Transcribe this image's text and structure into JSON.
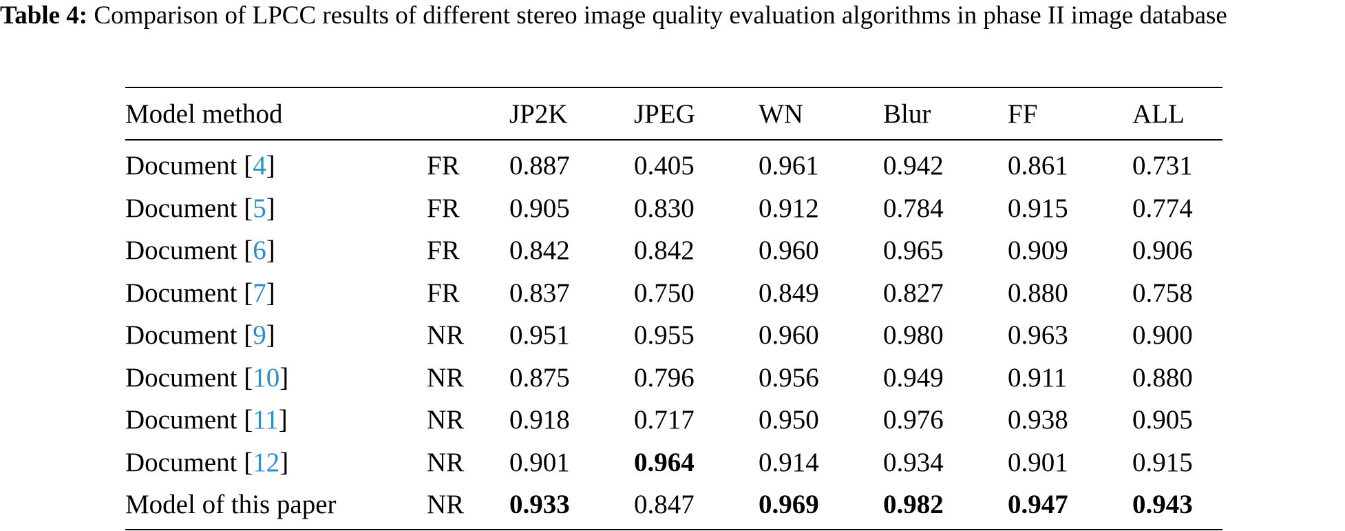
{
  "caption": {
    "label": "Table 4:",
    "text": " Comparison of LPCC results of different stereo image quality evaluation algorithms in phase II image database"
  },
  "table": {
    "headers": [
      "Model method",
      "",
      "JP2K",
      "JPEG",
      "WN",
      "Blur",
      "FF",
      "ALL"
    ],
    "rows": [
      {
        "method": "Document ",
        "ref": "4",
        "type": "FR",
        "values": [
          "0.887",
          "0.405",
          "0.961",
          "0.942",
          "0.861",
          "0.731"
        ],
        "bold": [
          false,
          false,
          false,
          false,
          false,
          false
        ]
      },
      {
        "method": "Document ",
        "ref": "5",
        "type": "FR",
        "values": [
          "0.905",
          "0.830",
          "0.912",
          "0.784",
          "0.915",
          "0.774"
        ],
        "bold": [
          false,
          false,
          false,
          false,
          false,
          false
        ]
      },
      {
        "method": "Document ",
        "ref": "6",
        "type": "FR",
        "values": [
          "0.842",
          "0.842",
          "0.960",
          "0.965",
          "0.909",
          "0.906"
        ],
        "bold": [
          false,
          false,
          false,
          false,
          false,
          false
        ]
      },
      {
        "method": "Document ",
        "ref": "7",
        "type": "FR",
        "values": [
          "0.837",
          "0.750",
          "0.849",
          "0.827",
          "0.880",
          "0.758"
        ],
        "bold": [
          false,
          false,
          false,
          false,
          false,
          false
        ]
      },
      {
        "method": "Document ",
        "ref": "9",
        "type": "NR",
        "values": [
          "0.951",
          "0.955",
          "0.960",
          "0.980",
          "0.963",
          "0.900"
        ],
        "bold": [
          false,
          false,
          false,
          false,
          false,
          false
        ]
      },
      {
        "method": "Document ",
        "ref": "10",
        "type": "NR",
        "values": [
          "0.875",
          "0.796",
          "0.956",
          "0.949",
          "0.911",
          "0.880"
        ],
        "bold": [
          false,
          false,
          false,
          false,
          false,
          false
        ]
      },
      {
        "method": "Document ",
        "ref": "11",
        "type": "NR",
        "values": [
          "0.918",
          "0.717",
          "0.950",
          "0.976",
          "0.938",
          "0.905"
        ],
        "bold": [
          false,
          false,
          false,
          false,
          false,
          false
        ]
      },
      {
        "method": "Document ",
        "ref": "12",
        "type": "NR",
        "values": [
          "0.901",
          "0.964",
          "0.914",
          "0.934",
          "0.901",
          "0.915"
        ],
        "bold": [
          false,
          true,
          false,
          false,
          false,
          false
        ]
      },
      {
        "method": "Model of this paper",
        "ref": "",
        "type": "NR",
        "values": [
          "0.933",
          "0.847",
          "0.969",
          "0.982",
          "0.947",
          "0.943"
        ],
        "bold": [
          true,
          false,
          true,
          true,
          true,
          true
        ]
      }
    ]
  },
  "colors": {
    "text": "#000000",
    "reference_link": "#2a8fc9",
    "background": "#ffffff"
  }
}
